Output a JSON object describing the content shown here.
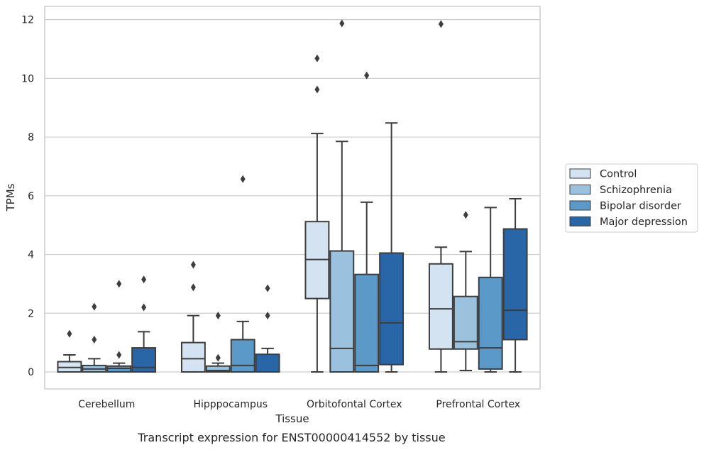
{
  "chart_data": {
    "type": "box",
    "title": "Transcript expression for ENST00000414552 by tissue",
    "xlabel": "Tissue",
    "ylabel": "TPMs",
    "ylim": [
      -0.58,
      12.45
    ],
    "yticks": [
      0,
      2,
      4,
      6,
      8,
      10,
      12
    ],
    "grid": true,
    "legend_position": "right",
    "categories": [
      "Cerebellum",
      "Hipppocampus",
      "Orbitofontal Cortex",
      "Prefrontal Cortex"
    ],
    "series": [
      {
        "name": "Control",
        "color": "#d3e3f1",
        "boxes": [
          {
            "q1": 0.0,
            "median": 0.15,
            "q3": 0.35,
            "whisker_low": 0.0,
            "whisker_high": 0.58,
            "outliers": [
              1.3
            ]
          },
          {
            "q1": 0.0,
            "median": 0.45,
            "q3": 1.0,
            "whisker_low": 0.0,
            "whisker_high": 1.92,
            "outliers": [
              2.88,
              3.65
            ]
          },
          {
            "q1": 2.5,
            "median": 3.83,
            "q3": 5.12,
            "whisker_low": 0.0,
            "whisker_high": 8.12,
            "outliers": [
              9.62,
              10.68
            ]
          },
          {
            "q1": 0.78,
            "median": 2.15,
            "q3": 3.68,
            "whisker_low": 0.0,
            "whisker_high": 4.25,
            "outliers": [
              11.85
            ]
          }
        ]
      },
      {
        "name": "Schizophrenia",
        "color": "#9ac1de",
        "boxes": [
          {
            "q1": 0.0,
            "median": 0.1,
            "q3": 0.22,
            "whisker_low": 0.0,
            "whisker_high": 0.45,
            "outliers": [
              1.1,
              2.22
            ]
          },
          {
            "q1": 0.0,
            "median": 0.05,
            "q3": 0.2,
            "whisker_low": 0.0,
            "whisker_high": 0.3,
            "outliers": [
              0.48,
              1.92
            ]
          },
          {
            "q1": 0.0,
            "median": 0.8,
            "q3": 4.12,
            "whisker_low": 0.0,
            "whisker_high": 7.85,
            "outliers": [
              11.87
            ]
          },
          {
            "q1": 0.78,
            "median": 1.03,
            "q3": 2.57,
            "whisker_low": 0.05,
            "whisker_high": 4.1,
            "outliers": [
              5.35
            ]
          }
        ]
      },
      {
        "name": "Bipolar disorder",
        "color": "#5a99c8",
        "boxes": [
          {
            "q1": 0.0,
            "median": 0.12,
            "q3": 0.2,
            "whisker_low": 0.0,
            "whisker_high": 0.3,
            "outliers": [
              0.58,
              3.0
            ]
          },
          {
            "q1": 0.0,
            "median": 0.22,
            "q3": 1.1,
            "whisker_low": 0.0,
            "whisker_high": 1.72,
            "outliers": [
              6.57
            ]
          },
          {
            "q1": 0.0,
            "median": 0.22,
            "q3": 3.32,
            "whisker_low": 0.0,
            "whisker_high": 5.78,
            "outliers": [
              10.1
            ]
          },
          {
            "q1": 0.1,
            "median": 0.82,
            "q3": 3.22,
            "whisker_low": 0.0,
            "whisker_high": 5.6,
            "outliers": []
          }
        ]
      },
      {
        "name": "Major depression",
        "color": "#2866a8",
        "boxes": [
          {
            "q1": 0.0,
            "median": 0.15,
            "q3": 0.82,
            "whisker_low": 0.0,
            "whisker_high": 1.37,
            "outliers": [
              2.2,
              3.15
            ]
          },
          {
            "q1": 0.0,
            "median": 0.0,
            "q3": 0.6,
            "whisker_low": 0.0,
            "whisker_high": 0.8,
            "outliers": [
              1.92,
              2.85
            ]
          },
          {
            "q1": 0.25,
            "median": 1.67,
            "q3": 4.05,
            "whisker_low": 0.0,
            "whisker_high": 8.48,
            "outliers": []
          },
          {
            "q1": 1.1,
            "median": 2.1,
            "q3": 4.87,
            "whisker_low": 0.0,
            "whisker_high": 5.9,
            "outliers": []
          }
        ]
      }
    ]
  }
}
